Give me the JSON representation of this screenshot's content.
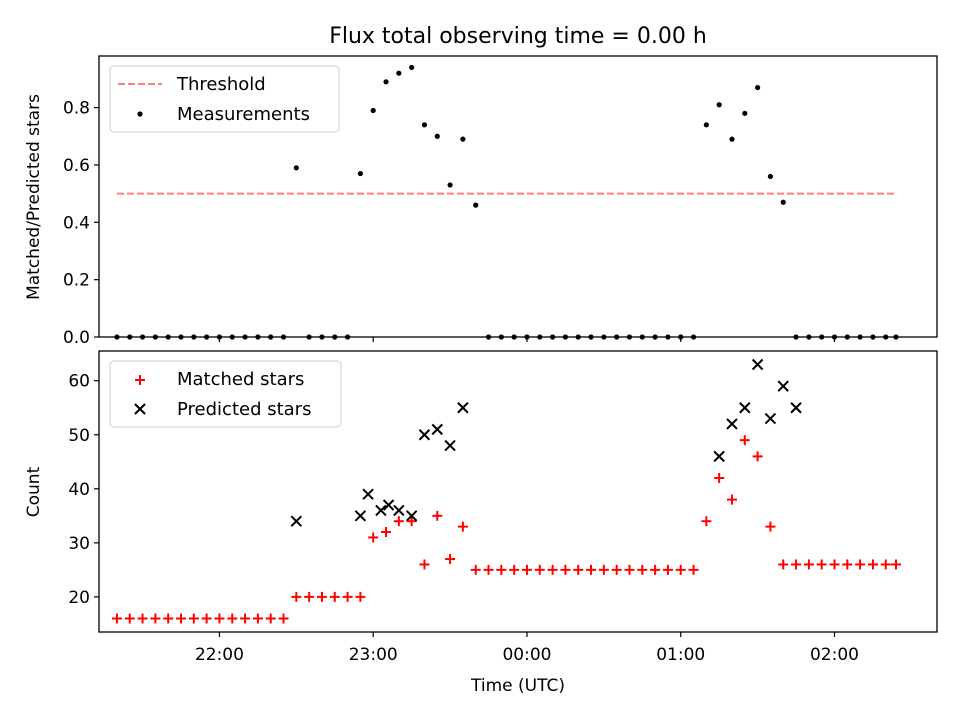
{
  "chart_data": [
    {
      "type": "scatter",
      "title": "Flux total observing time = 0.00 h",
      "xlabel": "",
      "ylabel": "Matched/Predicted stars",
      "ylim": [
        0.0,
        0.98
      ],
      "yticks": [
        0.0,
        0.2,
        0.4,
        0.6,
        0.8
      ],
      "ytick_labels": [
        "0.0",
        "0.2",
        "0.4",
        "0.6",
        "0.8"
      ],
      "xtick_labels": [],
      "legend_position": "top-left",
      "series": [
        {
          "name": "Threshold",
          "kind": "dashed-line",
          "color": "#ff7f7f",
          "x": [
            "21:20",
            "02:24"
          ],
          "y": [
            0.5,
            0.5
          ]
        },
        {
          "name": "Measurements",
          "kind": "dot",
          "color": "#000000",
          "x": [
            "21:20",
            "21:25",
            "21:30",
            "21:35",
            "21:40",
            "21:45",
            "21:50",
            "21:55",
            "22:00",
            "22:05",
            "22:10",
            "22:15",
            "22:20",
            "22:25",
            "22:30",
            "22:35",
            "22:40",
            "22:45",
            "22:50",
            "22:55",
            "23:00",
            "23:05",
            "23:10",
            "23:15",
            "23:20",
            "23:25",
            "23:30",
            "23:35",
            "23:40",
            "23:45",
            "23:50",
            "23:55",
            "00:00",
            "00:05",
            "00:10",
            "00:15",
            "00:20",
            "00:25",
            "00:30",
            "00:35",
            "00:40",
            "00:45",
            "00:50",
            "00:55",
            "01:00",
            "01:05",
            "01:10",
            "01:15",
            "01:20",
            "01:25",
            "01:30",
            "01:35",
            "01:40",
            "01:45",
            "01:50",
            "01:55",
            "02:00",
            "02:05",
            "02:10",
            "02:15",
            "02:20",
            "02:24"
          ],
          "y": [
            0,
            0,
            0,
            0,
            0,
            0,
            0,
            0,
            0,
            0,
            0,
            0,
            0,
            0,
            0.59,
            0,
            0,
            0,
            0,
            0.57,
            0.79,
            0.89,
            0.92,
            0.94,
            0.74,
            0.7,
            0.53,
            0.69,
            0.46,
            0,
            0,
            0,
            0,
            0,
            0,
            0,
            0,
            0,
            0,
            0,
            0,
            0,
            0,
            0,
            0,
            0,
            0.74,
            0.81,
            0.69,
            0.78,
            0.87,
            0.56,
            0.47,
            0,
            0,
            0,
            0,
            0,
            0,
            0,
            0,
            0
          ]
        }
      ]
    },
    {
      "type": "scatter",
      "title": "",
      "xlabel": "Time (UTC)",
      "ylabel": "Count",
      "ylim": [
        13.5,
        65.5
      ],
      "yticks": [
        20,
        30,
        40,
        50,
        60
      ],
      "ytick_labels": [
        "20",
        "30",
        "40",
        "50",
        "60"
      ],
      "xticks": [
        "22:00",
        "23:00",
        "00:00",
        "01:00",
        "02:00"
      ],
      "xtick_labels": [
        "22:00",
        "23:00",
        "00:00",
        "01:00",
        "02:00"
      ],
      "legend_position": "top-left",
      "series": [
        {
          "name": "Matched stars",
          "kind": "plus",
          "color": "#ff0000",
          "x": [
            "21:20",
            "21:25",
            "21:30",
            "21:35",
            "21:40",
            "21:45",
            "21:50",
            "21:55",
            "22:00",
            "22:05",
            "22:10",
            "22:15",
            "22:20",
            "22:25",
            "22:30",
            "22:35",
            "22:40",
            "22:45",
            "22:50",
            "22:55",
            "23:00",
            "23:05",
            "23:10",
            "23:15",
            "23:20",
            "23:25",
            "23:30",
            "23:35",
            "23:40",
            "23:45",
            "23:50",
            "23:55",
            "00:00",
            "00:05",
            "00:10",
            "00:15",
            "00:20",
            "00:25",
            "00:30",
            "00:35",
            "00:40",
            "00:45",
            "00:50",
            "00:55",
            "01:00",
            "01:05",
            "01:10",
            "01:15",
            "01:20",
            "01:25",
            "01:30",
            "01:35",
            "01:40",
            "01:45",
            "01:50",
            "01:55",
            "02:00",
            "02:05",
            "02:10",
            "02:15",
            "02:20",
            "02:24"
          ],
          "y": [
            16,
            16,
            16,
            16,
            16,
            16,
            16,
            16,
            16,
            16,
            16,
            16,
            16,
            16,
            20,
            20,
            20,
            20,
            20,
            20,
            31,
            32,
            34,
            34,
            26,
            35,
            27,
            33,
            25,
            25,
            25,
            25,
            25,
            25,
            25,
            25,
            25,
            25,
            25,
            25,
            25,
            25,
            25,
            25,
            25,
            25,
            34,
            42,
            38,
            49,
            46,
            33,
            26,
            26,
            26,
            26,
            26,
            26,
            26,
            26,
            26,
            26
          ]
        },
        {
          "name": "Predicted stars",
          "kind": "x",
          "color": "#000000",
          "x": [
            "22:30",
            "22:55",
            "22:58",
            "23:03",
            "23:06",
            "23:10",
            "23:15",
            "23:20",
            "23:25",
            "23:30",
            "23:35",
            "01:15",
            "01:20",
            "01:25",
            "01:30",
            "01:35",
            "01:40",
            "01:45"
          ],
          "y": [
            34,
            35,
            39,
            36,
            37,
            36,
            35,
            50,
            51,
            48,
            55,
            46,
            52,
            55,
            63,
            53,
            59,
            55
          ]
        }
      ]
    }
  ]
}
